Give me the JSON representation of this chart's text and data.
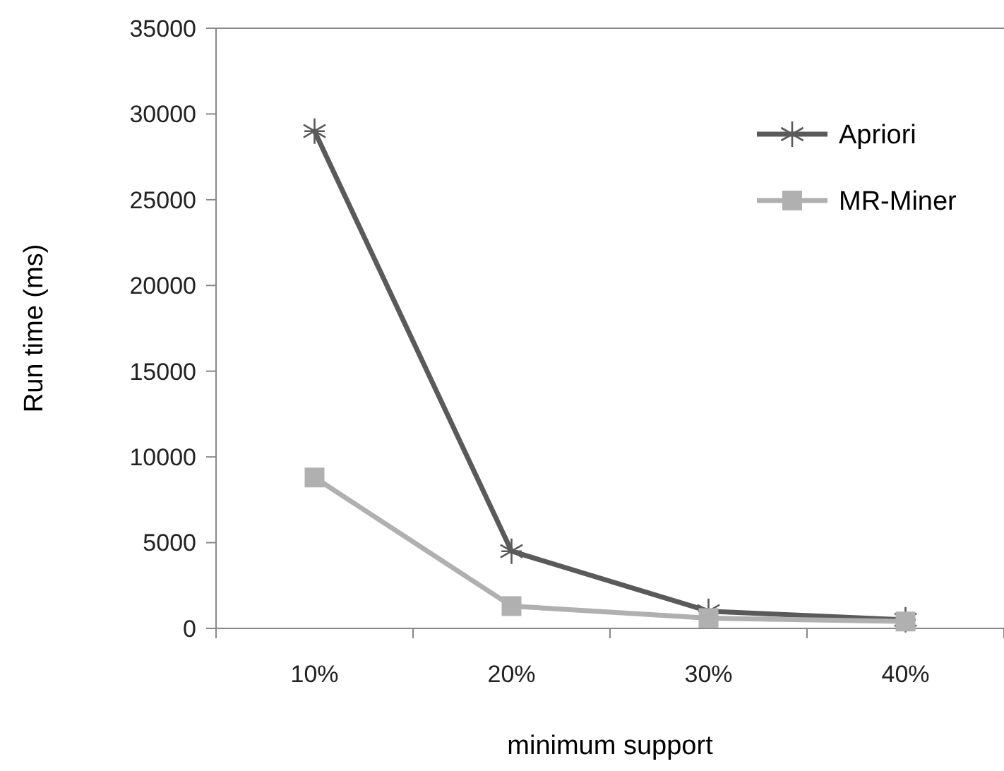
{
  "chart_data": {
    "type": "line",
    "xlabel": "minimum support",
    "ylabel": "Run time (ms)",
    "categories": [
      "10%",
      "20%",
      "30%",
      "40%"
    ],
    "series": [
      {
        "name": "Apriori",
        "color": "#5a5a5a",
        "marker": "cross",
        "values": [
          29000,
          4500,
          1000,
          500
        ]
      },
      {
        "name": "MR-Miner",
        "color": "#b0b0b0",
        "marker": "square",
        "values": [
          8800,
          1300,
          600,
          400
        ]
      }
    ],
    "ylim": [
      0,
      35000
    ],
    "yticks": [
      0,
      5000,
      10000,
      15000,
      20000,
      25000,
      30000,
      35000
    ],
    "grid": false,
    "legend": "top right"
  }
}
